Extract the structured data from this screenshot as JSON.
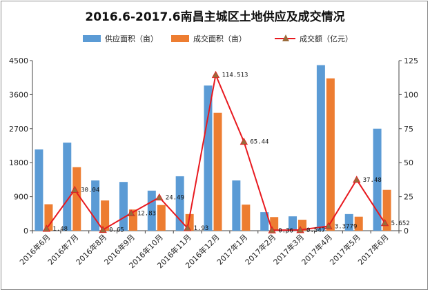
{
  "chart_data": {
    "type": "bar",
    "title": "2016.6-2017.6南昌主城区土地供应及成交情况",
    "categories": [
      "2016年6月",
      "2016年7月",
      "2016年8月",
      "2016年9月",
      "2016年10月",
      "2016年11月",
      "2016年12月",
      "2017年1月",
      "2017年2月",
      "2017年3月",
      "2017年4月",
      "2017年5月",
      "2017年6月"
    ],
    "series": [
      {
        "name": "供应面积（亩）",
        "type": "bar",
        "axis": "left",
        "color": "#5b9bd5",
        "values": [
          2150,
          2330,
          1330,
          1290,
          1060,
          1440,
          3840,
          1330,
          490,
          380,
          4380,
          440,
          2700
        ]
      },
      {
        "name": "成交面积（亩）",
        "type": "bar",
        "axis": "left",
        "color": "#ed7d31",
        "values": [
          700,
          1680,
          800,
          560,
          680,
          440,
          3120,
          690,
          360,
          290,
          4030,
          370,
          1080
        ]
      },
      {
        "name": "成交额（亿元）",
        "type": "line",
        "axis": "right",
        "color": "#e8191f",
        "marker_color": "#9a6b3b",
        "values": [
          1.48,
          30.04,
          0.65,
          12.83,
          24.49,
          1.93,
          114.513,
          65.44,
          0.36,
          0.547,
          3.3779,
          37.48,
          5.652
        ],
        "labels": [
          "1.48",
          "30.04",
          "0.65",
          "12.83",
          "24.49",
          "1.93",
          "114.513",
          "65.44",
          "0.36",
          "0.547",
          "3.3779",
          "37.48",
          "5.652"
        ]
      }
    ],
    "ylim_left": [
      0,
      4500
    ],
    "yticks_left": [
      0,
      900,
      1800,
      2700,
      3600,
      4500
    ],
    "ylim_right": [
      0,
      125
    ],
    "yticks_right": [
      0,
      25,
      50,
      75,
      100,
      125
    ],
    "legend_position": "top",
    "grid": false
  }
}
